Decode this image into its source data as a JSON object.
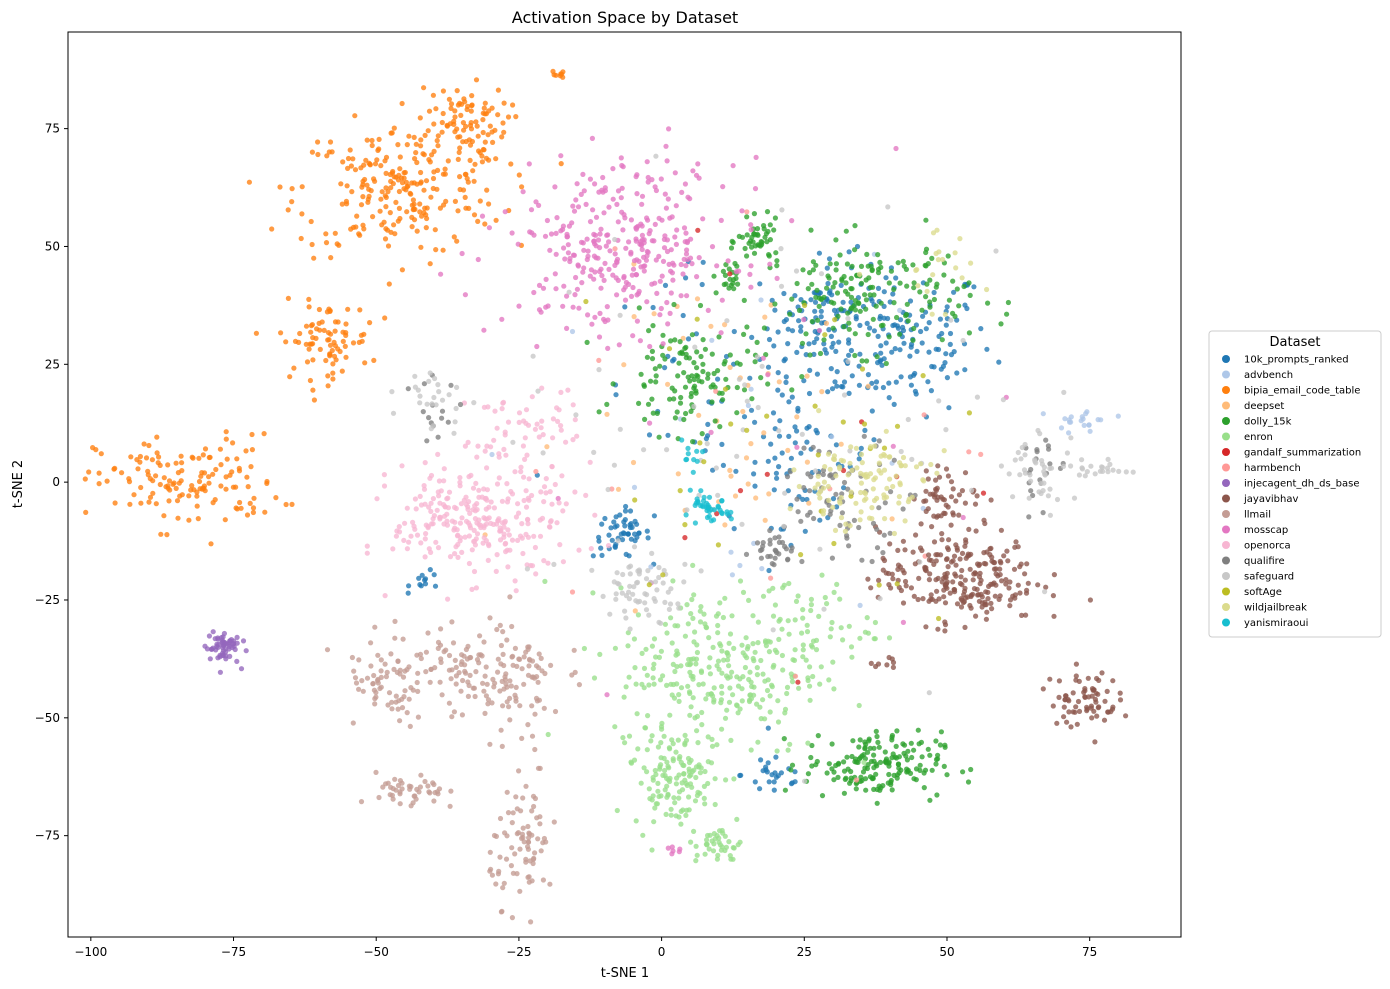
{
  "chart_data": {
    "type": "scatter",
    "title": "Activation Space by Dataset",
    "xlabel": "t-SNE 1",
    "ylabel": "t-SNE 2",
    "xlim": [
      -104,
      91
    ],
    "ylim": [
      -96.5,
      95.5
    ],
    "xticks": [
      -100,
      -75,
      -50,
      -25,
      0,
      25,
      50,
      75
    ],
    "xtick_labels": [
      "−100",
      "−75",
      "−50",
      "−25",
      "0",
      "25",
      "50",
      "75"
    ],
    "yticks": [
      -75,
      -50,
      -25,
      0,
      25,
      50,
      75
    ],
    "ytick_labels": [
      "−75",
      "−50",
      "−25",
      "0",
      "25",
      "50",
      "75"
    ],
    "grid": false,
    "legend_title": "Dataset",
    "legend_position": "right-outside",
    "series": [
      {
        "name": "10k_prompts_ranked",
        "color": "#1f77b4",
        "clusters": [
          {
            "cx": 40,
            "cy": 30,
            "sx": 9,
            "sy": 8,
            "n": 170
          },
          {
            "cx": 28,
            "cy": 35,
            "sx": 6,
            "sy": 6,
            "n": 70
          },
          {
            "cx": 25,
            "cy": 5,
            "sx": 6,
            "sy": 7,
            "n": 60
          },
          {
            "cx": -7,
            "cy": -11,
            "sx": 2.5,
            "sy": 2.5,
            "n": 50
          },
          {
            "cx": 20,
            "cy": -62,
            "sx": 3,
            "sy": 3,
            "n": 25
          },
          {
            "cx": 10,
            "cy": 15,
            "sx": 12,
            "sy": 15,
            "n": 60
          },
          {
            "cx": -41,
            "cy": -21,
            "sx": 1.5,
            "sy": 1,
            "n": 12
          }
        ]
      },
      {
        "name": "advbench",
        "color": "#aec7e8",
        "clusters": [
          {
            "cx": 74,
            "cy": 13,
            "sx": 2.5,
            "sy": 1.5,
            "n": 20
          },
          {
            "cx": 15,
            "cy": 10,
            "sx": 20,
            "sy": 20,
            "n": 20
          }
        ]
      },
      {
        "name": "bipia_email_code_table",
        "color": "#ff7f0e",
        "clusters": [
          {
            "cx": -46,
            "cy": 62,
            "sx": 9,
            "sy": 7,
            "n": 230
          },
          {
            "cx": -35,
            "cy": 76,
            "sx": 4,
            "sy": 4,
            "n": 90
          },
          {
            "cx": -83,
            "cy": 0,
            "sx": 8,
            "sy": 5,
            "n": 140
          },
          {
            "cx": -59,
            "cy": 30,
            "sx": 4,
            "sy": 4,
            "n": 80
          },
          {
            "cx": -18,
            "cy": 86.5,
            "sx": 0.6,
            "sy": 0.4,
            "n": 8
          }
        ]
      },
      {
        "name": "deepset",
        "color": "#ffbb78",
        "clusters": [
          {
            "cx": 20,
            "cy": 15,
            "sx": 18,
            "sy": 15,
            "n": 40
          },
          {
            "cx": 15,
            "cy": -2,
            "sx": 6,
            "sy": 3,
            "n": 10
          }
        ]
      },
      {
        "name": "dolly_15k",
        "color": "#2ca02c",
        "clusters": [
          {
            "cx": 36,
            "cy": 40,
            "sx": 9,
            "sy": 6,
            "n": 170
          },
          {
            "cx": 17,
            "cy": 51,
            "sx": 1.8,
            "sy": 2.2,
            "n": 45
          },
          {
            "cx": 5,
            "cy": 22,
            "sx": 6,
            "sy": 6,
            "n": 120
          },
          {
            "cx": 37,
            "cy": -60,
            "sx": 6,
            "sy": 3.5,
            "n": 170
          },
          {
            "cx": 12,
            "cy": 43,
            "sx": 1.5,
            "sy": 2,
            "n": 20
          }
        ]
      },
      {
        "name": "enron",
        "color": "#98df8a",
        "clusters": [
          {
            "cx": 10,
            "cy": -40,
            "sx": 9,
            "sy": 9,
            "n": 280
          },
          {
            "cx": 2,
            "cy": -63,
            "sx": 3.5,
            "sy": 5,
            "n": 120
          },
          {
            "cx": 10,
            "cy": -77,
            "sx": 2,
            "sy": 2,
            "n": 40
          },
          {
            "cx": 25,
            "cy": -30,
            "sx": 6,
            "sy": 5,
            "n": 60
          }
        ]
      },
      {
        "name": "gandalf_summarization",
        "color": "#d62728",
        "clusters": [
          {
            "cx": 10,
            "cy": 10,
            "sx": 25,
            "sy": 25,
            "n": 12
          }
        ]
      },
      {
        "name": "harmbench",
        "color": "#ff9896",
        "clusters": [
          {
            "cx": 30,
            "cy": 0,
            "sx": 25,
            "sy": 25,
            "n": 15
          }
        ]
      },
      {
        "name": "injecagent_dh_ds_base",
        "color": "#9467bd",
        "clusters": [
          {
            "cx": -77,
            "cy": -35,
            "sx": 1.5,
            "sy": 1.8,
            "n": 60
          }
        ]
      },
      {
        "name": "jayavibhav",
        "color": "#8c564b",
        "clusters": [
          {
            "cx": 52,
            "cy": -20,
            "sx": 7,
            "sy": 5,
            "n": 240
          },
          {
            "cx": 50,
            "cy": -3,
            "sx": 3,
            "sy": 3,
            "n": 50
          },
          {
            "cx": 74,
            "cy": -46,
            "sx": 3,
            "sy": 3,
            "n": 70
          },
          {
            "cx": 38,
            "cy": -38,
            "sx": 2,
            "sy": 1,
            "n": 8
          }
        ]
      },
      {
        "name": "llmail",
        "color": "#c49c94",
        "clusters": [
          {
            "cx": -35,
            "cy": -40,
            "sx": 8,
            "sy": 5,
            "n": 140
          },
          {
            "cx": -44,
            "cy": -66,
            "sx": 3,
            "sy": 2,
            "n": 45
          },
          {
            "cx": -24,
            "cy": -77,
            "sx": 3,
            "sy": 6,
            "n": 80
          },
          {
            "cx": -49,
            "cy": -44,
            "sx": 3,
            "sy": 4,
            "n": 40
          },
          {
            "cx": -25,
            "cy": -45,
            "sx": 4,
            "sy": 8,
            "n": 50
          }
        ]
      },
      {
        "name": "mosscap",
        "color": "#e377c2",
        "clusters": [
          {
            "cx": -7,
            "cy": 50,
            "sx": 10,
            "sy": 9,
            "n": 330
          },
          {
            "cx": 2,
            "cy": -78,
            "sx": 1,
            "sy": 0.5,
            "n": 6
          },
          {
            "cx": 10,
            "cy": 0,
            "sx": 30,
            "sy": 30,
            "n": 15
          }
        ]
      },
      {
        "name": "openorca",
        "color": "#f7b6d2",
        "clusters": [
          {
            "cx": -35,
            "cy": -8,
            "sx": 6,
            "sy": 6,
            "n": 200
          },
          {
            "cx": -24,
            "cy": 10,
            "sx": 5,
            "sy": 5,
            "n": 60
          },
          {
            "cx": -22,
            "cy": -10,
            "sx": 4,
            "sy": 6,
            "n": 60
          }
        ]
      },
      {
        "name": "qualifire",
        "color": "#7f7f7f",
        "clusters": [
          {
            "cx": 32,
            "cy": -3,
            "sx": 6,
            "sy": 6,
            "n": 70
          },
          {
            "cx": 20,
            "cy": -14,
            "sx": 2,
            "sy": 2,
            "n": 30
          },
          {
            "cx": -40,
            "cy": 15,
            "sx": 2,
            "sy": 4,
            "n": 15
          },
          {
            "cx": 67,
            "cy": 2,
            "sx": 2,
            "sy": 4,
            "n": 20
          }
        ]
      },
      {
        "name": "safeguard",
        "color": "#c7c7c7",
        "clusters": [
          {
            "cx": -3,
            "cy": -23,
            "sx": 4,
            "sy": 3,
            "n": 60
          },
          {
            "cx": 66,
            "cy": 3,
            "sx": 3,
            "sy": 4,
            "n": 40
          },
          {
            "cx": 77,
            "cy": 3,
            "sx": 2.5,
            "sy": 1,
            "n": 20
          },
          {
            "cx": 20,
            "cy": 10,
            "sx": 25,
            "sy": 25,
            "n": 80
          },
          {
            "cx": -40,
            "cy": 18,
            "sx": 3,
            "sy": 4,
            "n": 25
          }
        ]
      },
      {
        "name": "softAge",
        "color": "#bcbd22",
        "clusters": [
          {
            "cx": 20,
            "cy": 10,
            "sx": 18,
            "sy": 18,
            "n": 35
          }
        ]
      },
      {
        "name": "wildjailbreak",
        "color": "#dbdb8d",
        "clusters": [
          {
            "cx": 35,
            "cy": 0,
            "sx": 6,
            "sy": 5,
            "n": 110
          },
          {
            "cx": 45,
            "cy": 45,
            "sx": 6,
            "sy": 4,
            "n": 20
          }
        ]
      },
      {
        "name": "yanismiraoui",
        "color": "#17becf",
        "clusters": [
          {
            "cx": 8,
            "cy": -6,
            "sx": 2,
            "sy": 1.5,
            "n": 40
          },
          {
            "cx": 5,
            "cy": 5,
            "sx": 1.5,
            "sy": 1.5,
            "n": 10
          }
        ]
      }
    ]
  }
}
